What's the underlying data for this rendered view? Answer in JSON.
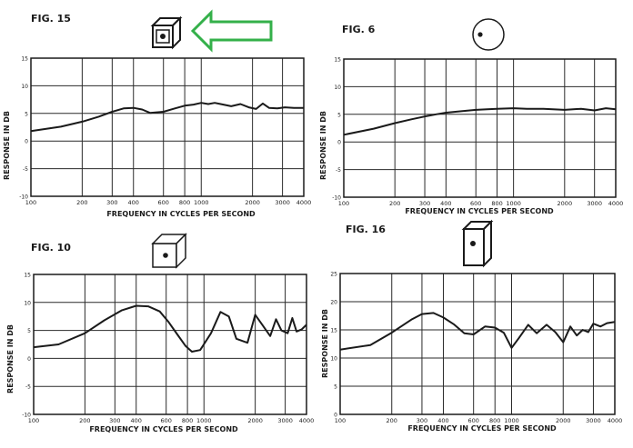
{
  "colors": {
    "ink": "#1a1a1a",
    "grid": "#2a2a2a",
    "arrow": "#34b04a",
    "paper": "#ffffff"
  },
  "chart_data": [
    {
      "id": "fig15",
      "type": "line",
      "title": "FIG. 15",
      "enclosure_icon": "cube-enclosure-icon",
      "xlabel": "FREQUENCY   IN   CYCLES   PER   SECOND",
      "ylabel": "RESPONSE   IN   DB",
      "x_scale": "log",
      "xlim": [
        100,
        4000
      ],
      "ylim": [
        -10,
        15
      ],
      "x_ticks": [
        100,
        200,
        300,
        400,
        600,
        800,
        1000,
        2000,
        3000,
        4000
      ],
      "x_tick_labels": [
        "100",
        "200",
        "300",
        "400",
        "600",
        "800",
        "1000",
        "2000",
        "3000",
        "4000"
      ],
      "y_ticks": [
        -10,
        -5,
        0,
        5,
        10,
        15
      ],
      "y_tick_labels": [
        "-10",
        "-5",
        "0",
        "5",
        "10",
        "15"
      ],
      "grid": true,
      "series": [
        {
          "x": [
            100,
            150,
            200,
            250,
            300,
            350,
            400,
            450,
            500,
            600,
            700,
            800,
            900,
            1000,
            1100,
            1200,
            1300,
            1500,
            1700,
            1900,
            2100,
            2300,
            2500,
            2800,
            3100,
            3500,
            4000
          ],
          "y": [
            1.8,
            2.6,
            3.5,
            4.4,
            5.3,
            5.9,
            6.0,
            5.7,
            5.1,
            5.3,
            5.9,
            6.4,
            6.6,
            6.9,
            6.7,
            6.9,
            6.7,
            6.3,
            6.7,
            6.1,
            5.8,
            6.8,
            6.0,
            5.9,
            6.1,
            6.0,
            6.0
          ]
        }
      ]
    },
    {
      "id": "fig6",
      "type": "line",
      "title": "FIG. 6",
      "enclosure_icon": "sphere-enclosure-icon",
      "xlabel": "FREQUENCY   IN   CYCLES   PER   SECOND",
      "ylabel": "RESPONSE   IN   DB",
      "x_scale": "log",
      "xlim": [
        100,
        4000
      ],
      "ylim": [
        -10,
        15
      ],
      "x_ticks": [
        100,
        200,
        300,
        400,
        600,
        800,
        1000,
        2000,
        3000,
        4000
      ],
      "x_tick_labels": [
        "100",
        "200",
        "300",
        "400",
        "600",
        "800",
        "1000",
        "2000",
        "3000",
        "4000"
      ],
      "y_ticks": [
        -10,
        -5,
        0,
        5,
        10,
        15
      ],
      "y_tick_labels": [
        "-10",
        "-5",
        "0",
        "5",
        "10",
        "15"
      ],
      "grid": true,
      "series": [
        {
          "x": [
            100,
            150,
            200,
            250,
            300,
            350,
            400,
            500,
            600,
            700,
            800,
            1000,
            1200,
            1500,
            2000,
            2500,
            3000,
            3500,
            4000
          ],
          "y": [
            1.3,
            2.4,
            3.4,
            4.1,
            4.6,
            5.0,
            5.3,
            5.6,
            5.8,
            5.9,
            6.0,
            6.1,
            6.0,
            6.0,
            5.8,
            6.0,
            5.7,
            6.1,
            5.9
          ]
        }
      ]
    },
    {
      "id": "fig10",
      "type": "line",
      "title": "FIG. 10",
      "enclosure_icon": "cube-enclosure-icon",
      "xlabel": "FREQUENCY   IN   CYCLES   PER   SECOND",
      "ylabel": "RESPONSE   IN   DB",
      "x_scale": "log",
      "xlim": [
        100,
        4000
      ],
      "ylim": [
        -10,
        15
      ],
      "x_ticks": [
        100,
        200,
        300,
        400,
        600,
        800,
        1000,
        2000,
        3000,
        4000
      ],
      "x_tick_labels": [
        "100",
        "200",
        "300",
        "400",
        "600",
        "800",
        "1000",
        "2000",
        "3000",
        "4000"
      ],
      "y_ticks": [
        -10,
        -5,
        0,
        5,
        10,
        15
      ],
      "y_tick_labels": [
        "-10",
        "-5",
        "0",
        "5",
        "10",
        "15"
      ],
      "grid": true,
      "series": [
        {
          "x": [
            100,
            140,
            200,
            260,
            330,
            400,
            470,
            550,
            620,
            700,
            780,
            850,
            950,
            1100,
            1250,
            1400,
            1550,
            1800,
            2000,
            2200,
            2450,
            2650,
            2850,
            3100,
            3300,
            3500,
            3750,
            4000
          ],
          "y": [
            2.0,
            2.5,
            4.5,
            6.8,
            8.6,
            9.4,
            9.3,
            8.4,
            6.5,
            4.2,
            2.2,
            1.2,
            1.5,
            4.5,
            8.3,
            7.5,
            3.5,
            2.8,
            7.8,
            6.0,
            4.0,
            7.0,
            5.0,
            4.5,
            7.2,
            4.8,
            5.2,
            6.0
          ]
        }
      ]
    },
    {
      "id": "fig16",
      "type": "line",
      "title": "FIG. 16",
      "enclosure_icon": "tall-box-enclosure-icon",
      "xlabel": "FREQUENCY   IN   CYCLES   PER   SECOND",
      "ylabel": "RESPONSE   IN   DB",
      "x_scale": "log",
      "xlim": [
        100,
        4000
      ],
      "ylim": [
        0,
        25
      ],
      "x_ticks": [
        100,
        200,
        300,
        400,
        600,
        800,
        1000,
        2000,
        3000,
        4000
      ],
      "x_tick_labels": [
        "100",
        "200",
        "300",
        "400",
        "600",
        "800",
        "1000",
        "2000",
        "3000",
        "4000"
      ],
      "y_ticks": [
        0,
        5,
        10,
        15,
        20,
        25
      ],
      "y_tick_labels": [
        "0",
        "5",
        "10",
        "15",
        "20",
        "25"
      ],
      "grid": true,
      "series": [
        {
          "x": [
            100,
            150,
            200,
            260,
            300,
            350,
            400,
            460,
            530,
            600,
            700,
            800,
            900,
            1000,
            1100,
            1250,
            1400,
            1600,
            1800,
            2000,
            2200,
            2400,
            2600,
            2800,
            3000,
            3300,
            3600,
            4000
          ],
          "y": [
            11.5,
            12.3,
            14.5,
            16.8,
            17.8,
            18.0,
            17.2,
            16.0,
            14.4,
            14.2,
            15.6,
            15.4,
            14.5,
            11.8,
            13.5,
            15.9,
            14.4,
            15.9,
            14.6,
            12.8,
            15.6,
            14.0,
            15.0,
            14.6,
            16.1,
            15.6,
            16.2,
            16.4
          ]
        }
      ]
    }
  ]
}
